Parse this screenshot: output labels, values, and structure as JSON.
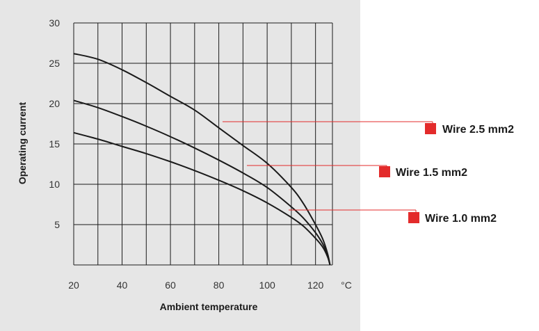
{
  "colors": {
    "panel_background": "#e6e6e6",
    "grid": "#1a1a1a",
    "curve": "#1a1a1a",
    "callout": "#e32b2b"
  },
  "chart_data": {
    "type": "line",
    "title": "",
    "xlabel": "Ambient temperature",
    "ylabel": "Operating current",
    "x_unit": "°C",
    "xlim": [
      20,
      127
    ],
    "ylim": [
      0,
      30
    ],
    "x_ticks": [
      20,
      40,
      60,
      80,
      100,
      120
    ],
    "y_ticks": [
      5,
      10,
      15,
      20,
      25,
      30
    ],
    "grid": true,
    "legend_placement": "right",
    "series": [
      {
        "name": "Wire 2.5 mm2",
        "x": [
          20,
          30,
          40,
          50,
          60,
          70,
          80,
          90,
          100,
          110,
          115,
          120,
          123,
          125,
          126
        ],
        "y": [
          26.2,
          25.5,
          24.2,
          22.6,
          20.9,
          19.2,
          17.0,
          14.8,
          12.6,
          9.6,
          7.6,
          5.0,
          3.2,
          1.4,
          0
        ]
      },
      {
        "name": "Wire 1.5 mm2",
        "x": [
          20,
          30,
          40,
          50,
          60,
          70,
          80,
          90,
          100,
          110,
          115,
          120,
          123,
          125,
          126
        ],
        "y": [
          20.4,
          19.5,
          18.4,
          17.2,
          15.9,
          14.5,
          13.0,
          11.4,
          9.6,
          7.2,
          5.8,
          4.0,
          2.6,
          1.2,
          0
        ]
      },
      {
        "name": "Wire 1.0 mm2",
        "x": [
          20,
          30,
          40,
          50,
          60,
          70,
          80,
          90,
          100,
          110,
          115,
          120,
          123,
          125,
          126
        ],
        "y": [
          16.4,
          15.6,
          14.7,
          13.8,
          12.8,
          11.7,
          10.5,
          9.2,
          7.7,
          5.9,
          4.8,
          3.3,
          2.2,
          1.0,
          0
        ]
      }
    ]
  }
}
